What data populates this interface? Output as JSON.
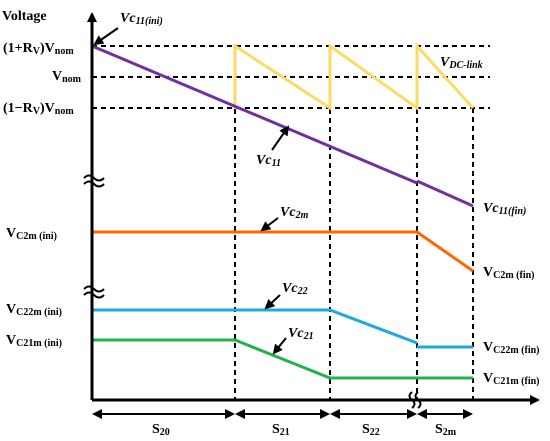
{
  "y_axis_label": "Voltage",
  "levels": {
    "upper": {
      "lead": "(1+R",
      "sub": "V",
      "mid": ")V",
      "tail": "nom"
    },
    "nominal": {
      "lead": "V",
      "tail": "nom"
    },
    "lower": {
      "lead": "(1−R",
      "sub": "V",
      "mid": ")V",
      "tail": "nom"
    }
  },
  "left_labels": {
    "vc2m_ini": {
      "lead": "V",
      "sub": "C2m (ini)"
    },
    "vc22m_ini": {
      "lead": "V",
      "sub": "C22m (ini)"
    },
    "vc21m_ini": {
      "lead": "V",
      "sub": "C21m (ini)"
    }
  },
  "right_labels": {
    "vc11_fin": {
      "lead": "Vc",
      "sub": "11(fin)"
    },
    "vc2m_fin": {
      "lead": "V",
      "sub": "C2m (fin)"
    },
    "vc22m_fin": {
      "lead": "V",
      "sub": "C22m (fin)"
    },
    "vc21m_fin": {
      "lead": "V",
      "sub": "C21m (fin)"
    }
  },
  "curve_labels": {
    "vc11_ini": {
      "lead": "Vc",
      "sub": "11(ini)"
    },
    "vdc_link": {
      "lead": "V",
      "sub": "DC-link"
    },
    "vc11": {
      "lead": "Vc",
      "sub": "11"
    },
    "vc2m": {
      "lead": "Vc",
      "sub": "2m"
    },
    "vc22": {
      "lead": "Vc",
      "sub": "22"
    },
    "vc21": {
      "lead": "Vc",
      "sub": "21"
    }
  },
  "stages": [
    {
      "lead": "S",
      "sub": "20"
    },
    {
      "lead": "S",
      "sub": "21"
    },
    {
      "lead": "S",
      "sub": "22"
    },
    {
      "lead": "S",
      "sub": "2m"
    }
  ],
  "colors": {
    "vc11": "#7030a0",
    "vdc_link": "#ffd966",
    "vc2m": "#ff6600",
    "vc22": "#1aa9e0",
    "vc21": "#22b14c",
    "axis": "#000000"
  }
}
